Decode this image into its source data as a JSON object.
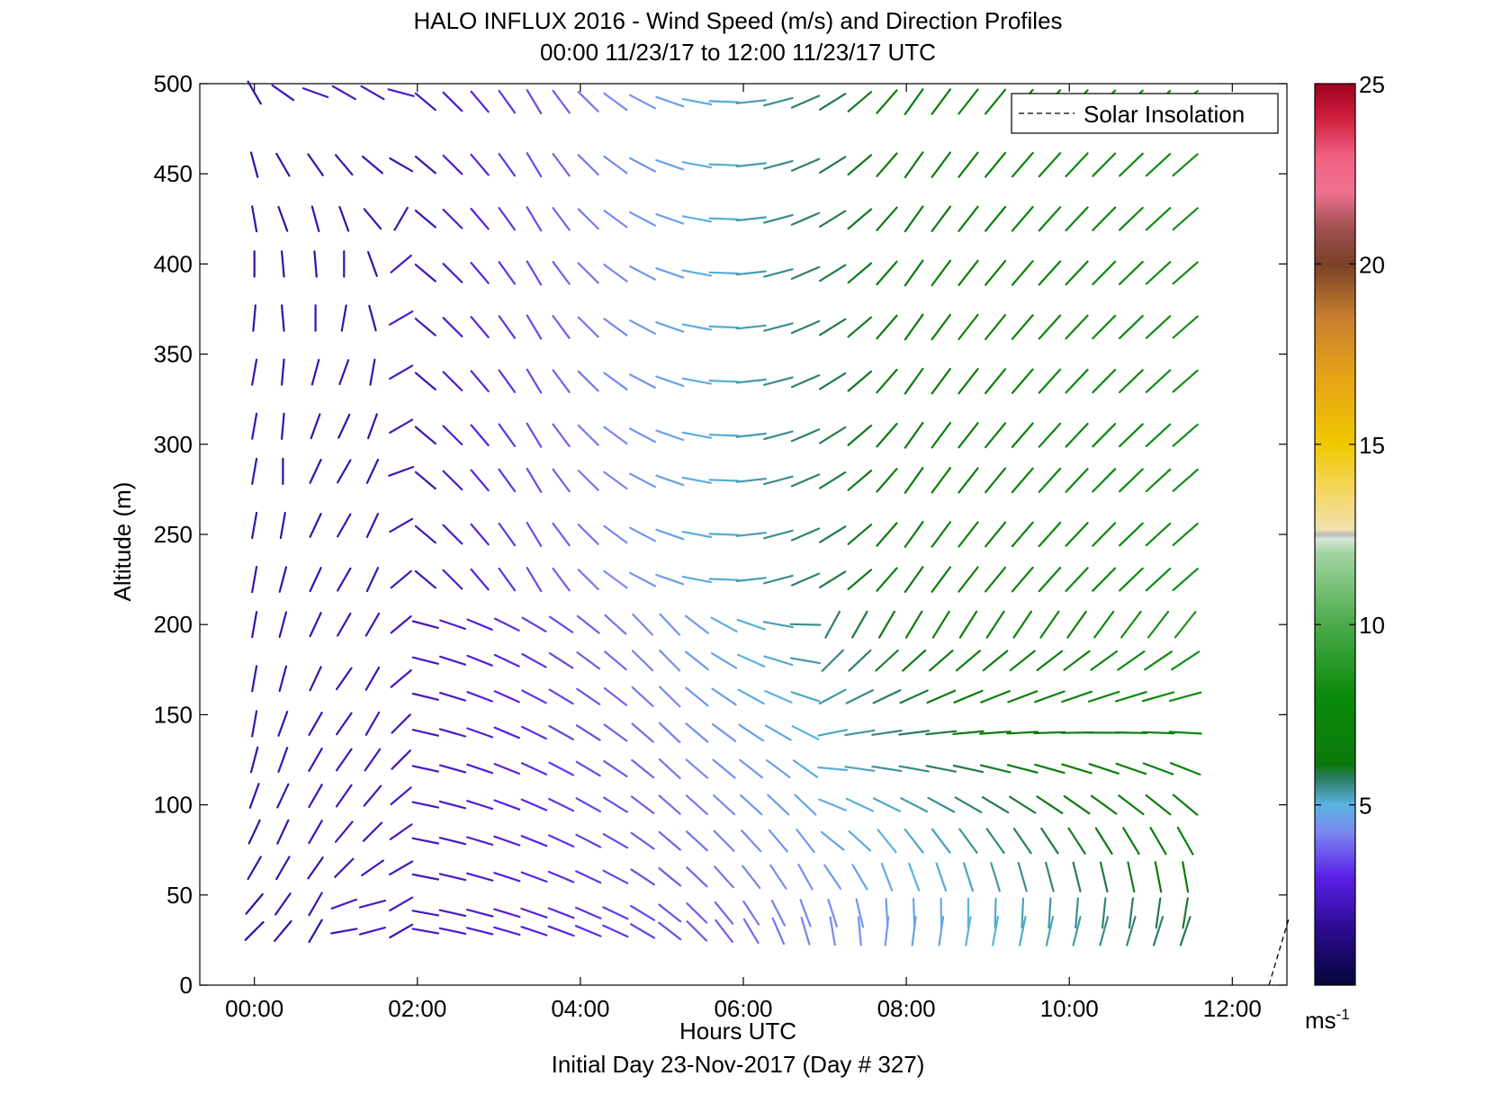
{
  "chart_data": {
    "type": "wind_barb_profile",
    "title": "HALO INFLUX 2016 - Wind Speed (m/s) and Direction Profiles",
    "subtitle": "00:00 11/23/17 to 12:00 11/23/17  UTC",
    "xlabel": "Hours UTC",
    "ylabel": "Altitude (m)",
    "footer": "Initial Day 23-Nov-2017 (Day # 327)",
    "xlim": [
      -0.67,
      12.67
    ],
    "ylim": [
      0,
      500
    ],
    "x_ticks": [
      0,
      2,
      4,
      6,
      8,
      10,
      12
    ],
    "x_tick_labels": [
      "00:00",
      "02:00",
      "04:00",
      "06:00",
      "08:00",
      "10:00",
      "12:00"
    ],
    "y_ticks": [
      0,
      50,
      100,
      150,
      200,
      250,
      300,
      350,
      400,
      450,
      500
    ],
    "y_tick_labels": [
      "0",
      "50",
      "100",
      "150",
      "200",
      "250",
      "300",
      "350",
      "400",
      "450",
      "500"
    ],
    "legend": {
      "label": "Solar Insolation",
      "position": "top-right",
      "style": "dashed"
    },
    "colorbar": {
      "label": "ms",
      "label_exponent": "-1",
      "range": [
        0,
        25
      ],
      "ticks": [
        5,
        10,
        15,
        20,
        25
      ],
      "tick_labels": [
        "5",
        "10",
        "15",
        "20",
        "25"
      ]
    },
    "solar_insolation": {
      "x": [
        12.45,
        12.7
      ],
      "y": [
        0,
        38
      ]
    },
    "row_heights": [
      30,
      40,
      60,
      80,
      100,
      120,
      140,
      160,
      180,
      200,
      225,
      250,
      280,
      305,
      335,
      365,
      395,
      425,
      455,
      490
    ],
    "time_start": [
      0.0,
      2.1,
      2.1,
      2.1,
      2.1,
      2.1,
      2.1,
      2.1,
      2.1,
      2.1,
      2.1,
      2.1,
      2.1,
      2.1,
      2.1,
      2.1,
      2.1,
      2.1,
      2.1,
      2.1
    ],
    "time_step": 0.333,
    "time_end": 11.75,
    "early_times": [
      0.0,
      0.35,
      0.75,
      1.1,
      1.45,
      1.8
    ],
    "early_rows": [
      {
        "altitude": 30,
        "dirs": [
          45,
          40,
          30,
          80,
          75,
          60
        ],
        "speeds": [
          1.8,
          2.0,
          1.9,
          2.2,
          2.4,
          2.2
        ]
      },
      {
        "altitude": 45,
        "dirs": [
          40,
          35,
          30,
          70,
          75,
          60
        ],
        "speeds": [
          1.8,
          2.0,
          2.1,
          2.5,
          2.6,
          2.4
        ]
      },
      {
        "altitude": 65,
        "dirs": [
          30,
          30,
          35,
          45,
          55,
          60
        ],
        "speeds": [
          2.0,
          2.1,
          2.0,
          2.2,
          2.3,
          2.5
        ]
      },
      {
        "altitude": 85,
        "dirs": [
          25,
          25,
          30,
          40,
          45,
          55
        ],
        "speeds": [
          2.0,
          2.1,
          2.2,
          2.3,
          2.3,
          2.4
        ]
      },
      {
        "altitude": 105,
        "dirs": [
          20,
          25,
          30,
          35,
          40,
          50
        ],
        "speeds": [
          2.0,
          2.1,
          2.2,
          2.3,
          2.3,
          2.4
        ]
      },
      {
        "altitude": 125,
        "dirs": [
          15,
          20,
          30,
          35,
          35,
          45
        ],
        "speeds": [
          2.0,
          2.1,
          2.2,
          2.2,
          2.3,
          2.3
        ]
      },
      {
        "altitude": 145,
        "dirs": [
          10,
          20,
          30,
          35,
          30,
          45
        ],
        "speeds": [
          2.0,
          2.0,
          2.1,
          2.2,
          2.2,
          2.3
        ]
      },
      {
        "altitude": 170,
        "dirs": [
          10,
          15,
          25,
          35,
          30,
          50
        ],
        "speeds": [
          2.0,
          2.0,
          2.1,
          2.2,
          2.2,
          2.3
        ]
      },
      {
        "altitude": 200,
        "dirs": [
          10,
          15,
          25,
          30,
          30,
          50
        ],
        "speeds": [
          2.0,
          2.0,
          2.0,
          2.1,
          2.1,
          2.3
        ]
      },
      {
        "altitude": 225,
        "dirs": [
          10,
          15,
          25,
          30,
          25,
          50
        ],
        "speeds": [
          2.0,
          2.0,
          2.0,
          2.1,
          2.1,
          2.3
        ]
      },
      {
        "altitude": 255,
        "dirs": [
          10,
          10,
          25,
          30,
          25,
          60
        ],
        "speeds": [
          2.0,
          2.0,
          2.0,
          2.1,
          2.1,
          2.2
        ]
      },
      {
        "altitude": 285,
        "dirs": [
          10,
          0,
          25,
          30,
          25,
          70
        ],
        "speeds": [
          2.0,
          1.8,
          2.0,
          2.1,
          2.0,
          2.2
        ]
      },
      {
        "altitude": 310,
        "dirs": [
          10,
          5,
          20,
          25,
          20,
          60
        ],
        "speeds": [
          2.0,
          1.9,
          2.0,
          2.0,
          2.0,
          2.3
        ]
      },
      {
        "altitude": 340,
        "dirs": [
          10,
          5,
          15,
          20,
          10,
          60
        ],
        "speeds": [
          2.0,
          1.9,
          2.0,
          2.0,
          1.9,
          2.4
        ]
      },
      {
        "altitude": 370,
        "dirs": [
          5,
          355,
          0,
          10,
          345,
          60
        ],
        "speeds": [
          1.9,
          1.9,
          2.0,
          2.0,
          1.9,
          2.6
        ]
      },
      {
        "altitude": 400,
        "dirs": [
          0,
          355,
          355,
          0,
          340,
          50
        ],
        "speeds": [
          1.9,
          1.9,
          1.9,
          2.0,
          1.9,
          2.4
        ]
      },
      {
        "altitude": 425,
        "dirs": [
          350,
          340,
          345,
          340,
          320,
          30
        ],
        "speeds": [
          1.9,
          1.9,
          2.0,
          2.0,
          2.0,
          2.1
        ]
      },
      {
        "altitude": 455,
        "dirs": [
          345,
          330,
          325,
          320,
          310,
          300
        ],
        "speeds": [
          1.9,
          2.0,
          2.0,
          2.1,
          2.2,
          2.2
        ]
      },
      {
        "altitude": 495,
        "dirs": [
          330,
          305,
          290,
          300,
          300,
          285
        ],
        "speeds": [
          2.0,
          2.2,
          2.4,
          2.4,
          2.4,
          2.6
        ]
      }
    ]
  }
}
